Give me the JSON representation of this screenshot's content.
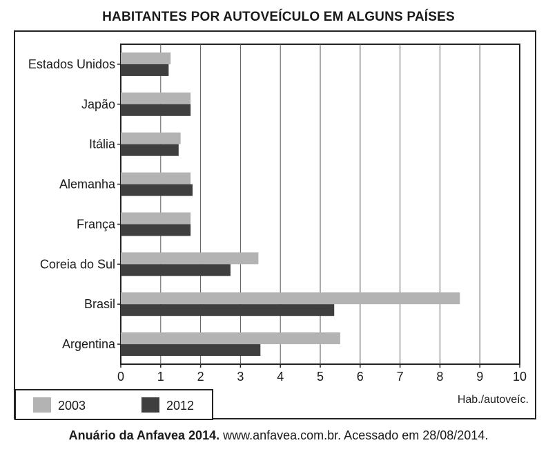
{
  "chart_data": {
    "type": "bar",
    "orientation": "horizontal",
    "title": "HABITANTES POR AUTOVEÍCULO EM ALGUNS PAÍSES",
    "categories": [
      "Estados Unidos",
      "Japão",
      "Itália",
      "Alemanha",
      "França",
      "Coreia do Sul",
      "Brasil",
      "Argentina"
    ],
    "series": [
      {
        "name": "2003",
        "color": "#b3b3b3",
        "values": [
          1.25,
          1.75,
          1.5,
          1.75,
          1.75,
          3.45,
          8.5,
          5.5
        ]
      },
      {
        "name": "2012",
        "color": "#3f3f3f",
        "values": [
          1.2,
          1.75,
          1.45,
          1.8,
          1.75,
          2.75,
          5.35,
          3.5
        ]
      }
    ],
    "xlim": [
      0,
      10
    ],
    "xticks": [
      "0",
      "1",
      "2",
      "3",
      "4",
      "5",
      "6",
      "7",
      "8",
      "9",
      "10"
    ],
    "xlabel": "Hab./autoveíc.",
    "ylabel": "",
    "grid": "vertical",
    "legend_position": "bottom-left"
  },
  "source": {
    "bold": "Anuário da Anfavea 2014.",
    "rest": " www.anfavea.com.br. Acessado em 28/08/2014."
  }
}
